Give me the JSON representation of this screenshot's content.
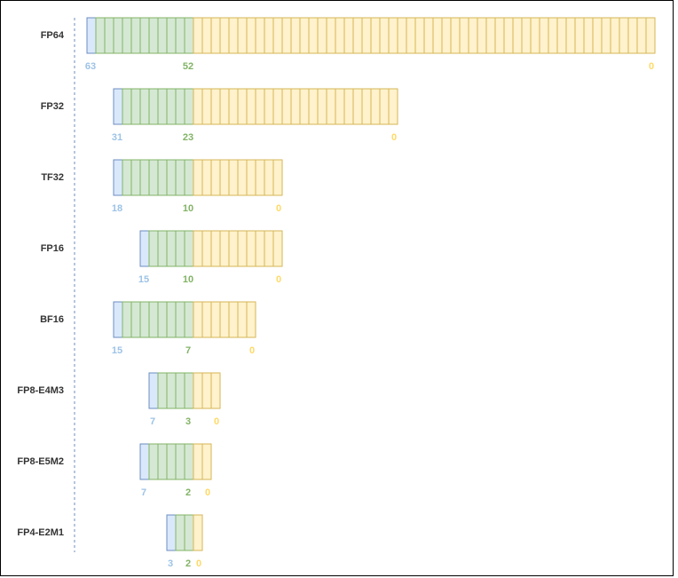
{
  "formats": [
    {
      "name": "FP64",
      "sign": "63",
      "exponent": "52",
      "mantissa": "0"
    },
    {
      "name": "FP32",
      "sign": "31",
      "exponent": "23",
      "mantissa": "0"
    },
    {
      "name": "TF32",
      "sign": "18",
      "exponent": "10",
      "mantissa": "0"
    },
    {
      "name": "FP16",
      "sign": "15",
      "exponent": "10",
      "mantissa": "0"
    },
    {
      "name": "BF16",
      "sign": "15",
      "exponent": "7",
      "mantissa": "0"
    },
    {
      "name": "FP8-E4M3",
      "sign": "7",
      "exponent": "3",
      "mantissa": "0"
    },
    {
      "name": "FP8-E5M2",
      "sign": "7",
      "exponent": "2",
      "mantissa": "0"
    },
    {
      "name": "FP4-E2M1",
      "sign": "3",
      "exponent": "2",
      "mantissa": "0"
    }
  ]
}
